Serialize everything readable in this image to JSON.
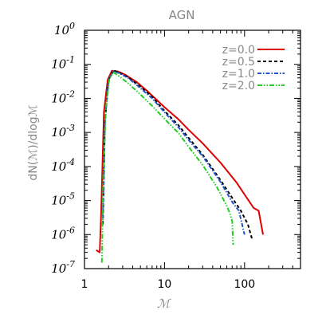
{
  "chart_data": {
    "type": "line",
    "title": "AGN",
    "xlabel": "ℳ",
    "ylabel": "dN(ℳ)/dlogℳ",
    "x_scale": "log",
    "y_scale": "log",
    "xlim": [
      1,
      500
    ],
    "ylim": [
      1e-07,
      1
    ],
    "x_ticks": [
      {
        "value": 1,
        "label": "1"
      },
      {
        "value": 10,
        "label": "10"
      },
      {
        "value": 100,
        "label": "100"
      }
    ],
    "y_ticks": [
      {
        "value": 1e-07,
        "base": "10",
        "exp": "-7"
      },
      {
        "value": 1e-06,
        "base": "10",
        "exp": "-6"
      },
      {
        "value": 1e-05,
        "base": "10",
        "exp": "-5"
      },
      {
        "value": 0.0001,
        "base": "10",
        "exp": "-4"
      },
      {
        "value": 0.001,
        "base": "10",
        "exp": "-3"
      },
      {
        "value": 0.01,
        "base": "10",
        "exp": "-2"
      },
      {
        "value": 0.1,
        "base": "10",
        "exp": "-1"
      },
      {
        "value": 1,
        "base": "10",
        "exp": "0"
      }
    ],
    "grid": false,
    "legend_position": "top-right",
    "series": [
      {
        "name": "z=0.0",
        "color": "#dd0000",
        "dash": "solid",
        "points": [
          [
            1.4,
            3.5e-07
          ],
          [
            1.55,
            3e-07
          ],
          [
            1.62,
            5e-06
          ],
          [
            1.75,
            0.004
          ],
          [
            1.95,
            0.035
          ],
          [
            2.2,
            0.065
          ],
          [
            2.6,
            0.062
          ],
          [
            3.2,
            0.05
          ],
          [
            4.5,
            0.03
          ],
          [
            6,
            0.017
          ],
          [
            8,
            0.009
          ],
          [
            10,
            0.0055
          ],
          [
            15,
            0.0024
          ],
          [
            20,
            0.0012
          ],
          [
            30,
            0.00048
          ],
          [
            50,
            0.00013
          ],
          [
            80,
            3.3e-05
          ],
          [
            100,
            1.5e-05
          ],
          [
            130,
            6e-06
          ],
          [
            150,
            5e-06
          ],
          [
            170,
            1e-06
          ]
        ]
      },
      {
        "name": "z=0.5",
        "color": "#000000",
        "dash": "dashed",
        "points": [
          [
            1.7,
            2e-06
          ],
          [
            1.8,
            0.002
          ],
          [
            2.0,
            0.035
          ],
          [
            2.3,
            0.066
          ],
          [
            2.7,
            0.058
          ],
          [
            3.5,
            0.042
          ],
          [
            5,
            0.022
          ],
          [
            7,
            0.011
          ],
          [
            10,
            0.0043
          ],
          [
            15,
            0.0016
          ],
          [
            20,
            0.0007
          ],
          [
            30,
            0.00022
          ],
          [
            50,
            4e-05
          ],
          [
            70,
            1.2e-05
          ],
          [
            90,
            5e-06
          ],
          [
            110,
            2e-06
          ],
          [
            125,
            7e-07
          ]
        ]
      },
      {
        "name": "z=1.0",
        "color": "#2255cc",
        "dash": "dashdot",
        "points": [
          [
            1.7,
            3e-06
          ],
          [
            1.8,
            0.002
          ],
          [
            2.0,
            0.035
          ],
          [
            2.3,
            0.063
          ],
          [
            2.7,
            0.055
          ],
          [
            3.5,
            0.04
          ],
          [
            5,
            0.02
          ],
          [
            7,
            0.01
          ],
          [
            10,
            0.0039
          ],
          [
            15,
            0.0014
          ],
          [
            20,
            0.0006
          ],
          [
            30,
            0.0002
          ],
          [
            50,
            3.5e-05
          ],
          [
            70,
            9e-06
          ],
          [
            85,
            5e-06
          ],
          [
            100,
            1e-06
          ]
        ]
      },
      {
        "name": "z=2.0",
        "color": "#22cc22",
        "dash": "dashdotdot",
        "points": [
          [
            1.65,
            1.5e-07
          ],
          [
            1.72,
            6e-05
          ],
          [
            1.85,
            0.005
          ],
          [
            2.05,
            0.04
          ],
          [
            2.3,
            0.058
          ],
          [
            2.7,
            0.045
          ],
          [
            3.5,
            0.028
          ],
          [
            5,
            0.013
          ],
          [
            7,
            0.006
          ],
          [
            10,
            0.0025
          ],
          [
            15,
            0.00095
          ],
          [
            20,
            0.00038
          ],
          [
            30,
            0.00011
          ],
          [
            45,
            2.5e-05
          ],
          [
            60,
            7e-06
          ],
          [
            66,
            4e-06
          ],
          [
            70,
            2.5e-06
          ],
          [
            72,
            5e-07
          ]
        ]
      }
    ]
  }
}
